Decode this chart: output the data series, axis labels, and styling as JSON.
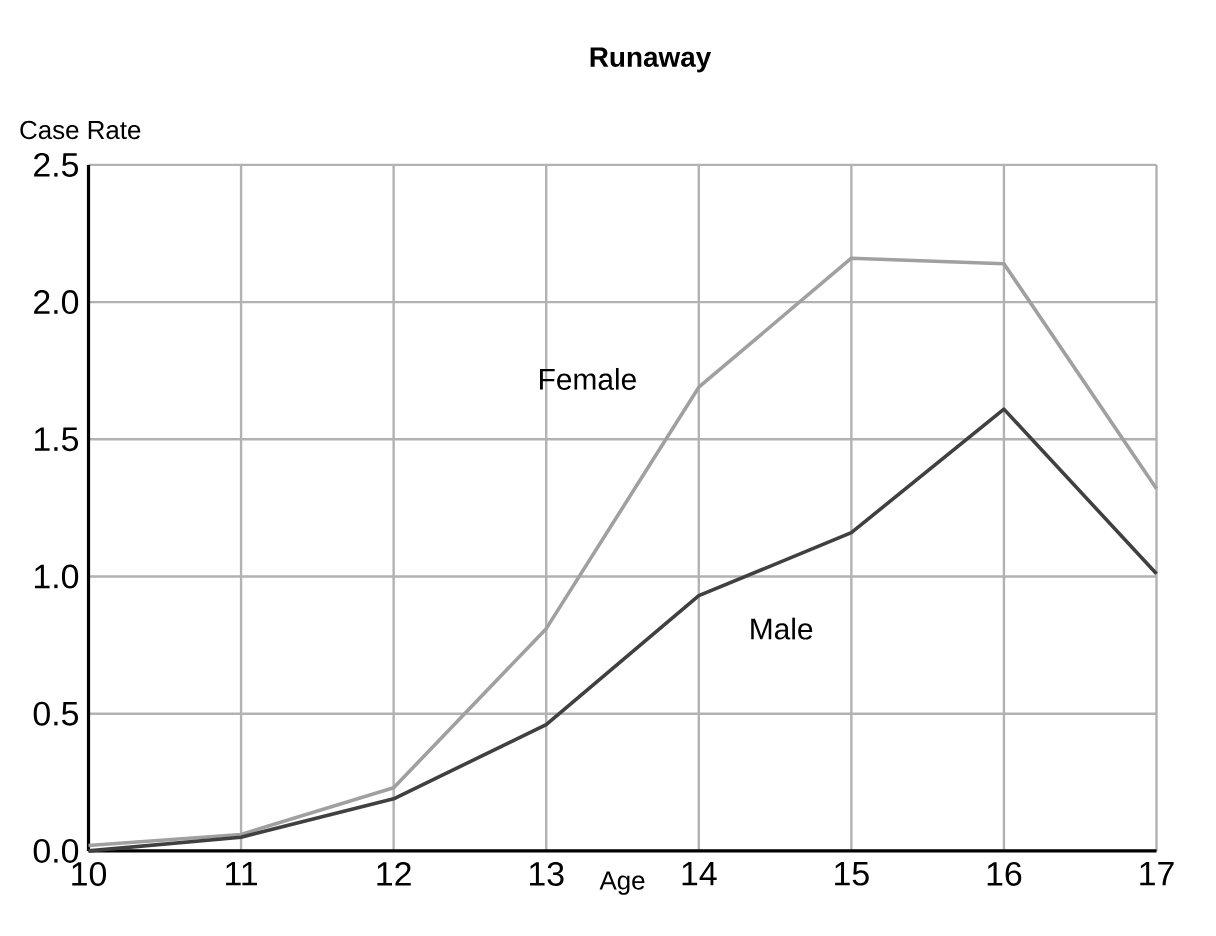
{
  "chart_data": {
    "type": "line",
    "title": "Runaway",
    "ylabel": "Case Rate",
    "xlabel": "Age",
    "x": [
      10,
      11,
      12,
      13,
      14,
      15,
      16,
      17
    ],
    "series": [
      {
        "name": "Female",
        "color": "#a0a0a0",
        "values": [
          0.02,
          0.06,
          0.23,
          0.81,
          1.69,
          2.16,
          2.14,
          1.32
        ]
      },
      {
        "name": "Male",
        "color": "#404040",
        "values": [
          0.0,
          0.05,
          0.19,
          0.46,
          0.93,
          1.16,
          1.61,
          1.01
        ]
      }
    ],
    "xlim": [
      10,
      17
    ],
    "ylim": [
      0,
      2.5
    ],
    "xticks": [
      10,
      11,
      12,
      13,
      14,
      15,
      16,
      17
    ],
    "yticks": [
      {
        "value": 0,
        "label": "0.0"
      },
      {
        "value": 0.5,
        "label": "0.5"
      },
      {
        "value": 1,
        "label": "1.0"
      },
      {
        "value": 1.5,
        "label": "1.5"
      },
      {
        "value": 2,
        "label": "2.0"
      },
      {
        "value": 2.5,
        "label": "2.5"
      }
    ],
    "grid": true,
    "legend": false,
    "marker": "none",
    "line_style": "solid"
  }
}
